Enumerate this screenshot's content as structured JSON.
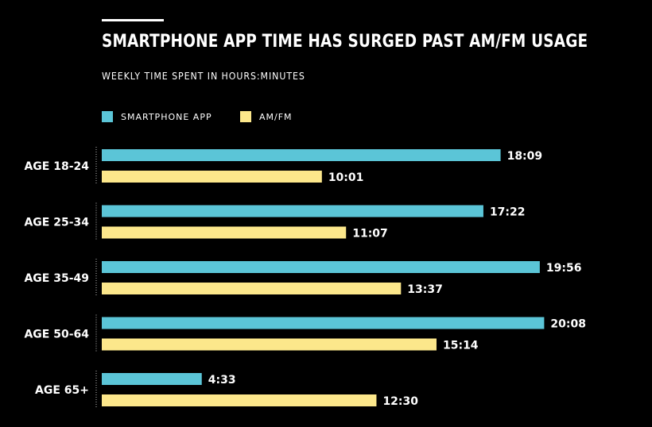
{
  "colors": {
    "background": "#000000",
    "text": "#ffffff",
    "smartphone": "#5bc5d7",
    "amfm": "#fce78b"
  },
  "legend": [
    {
      "label": "SMARTPHONE APP",
      "color": "#5bc5d7"
    },
    {
      "label": "AM/FM",
      "color": "#fce78b"
    }
  ],
  "chart_data": {
    "type": "bar",
    "orientation": "horizontal",
    "title": "SMARTPHONE APP TIME HAS SURGED PAST AM/FM USAGE",
    "subtitle": "WEEKLY TIME SPENT IN HOURS:MINUTES",
    "categories": [
      "AGE 18-24",
      "AGE 25-34",
      "AGE 35-49",
      "AGE 50-64",
      "AGE 65+"
    ],
    "xlim": [
      0,
      1350
    ],
    "grid": false,
    "legend_position": "top-left",
    "value_units": "minutes",
    "series": [
      {
        "name": "SMARTPHONE APP",
        "color": "#5bc5d7",
        "values": [
          1089,
          1042,
          1196,
          1208,
          273
        ],
        "labels": [
          "18:09",
          "17:22",
          "19:56",
          "20:08",
          "4:33"
        ]
      },
      {
        "name": "AM/FM",
        "color": "#fce78b",
        "values": [
          601,
          667,
          817,
          914,
          750
        ],
        "labels": [
          "10:01",
          "11:07",
          "13:37",
          "15:14",
          "12:30"
        ]
      }
    ]
  }
}
